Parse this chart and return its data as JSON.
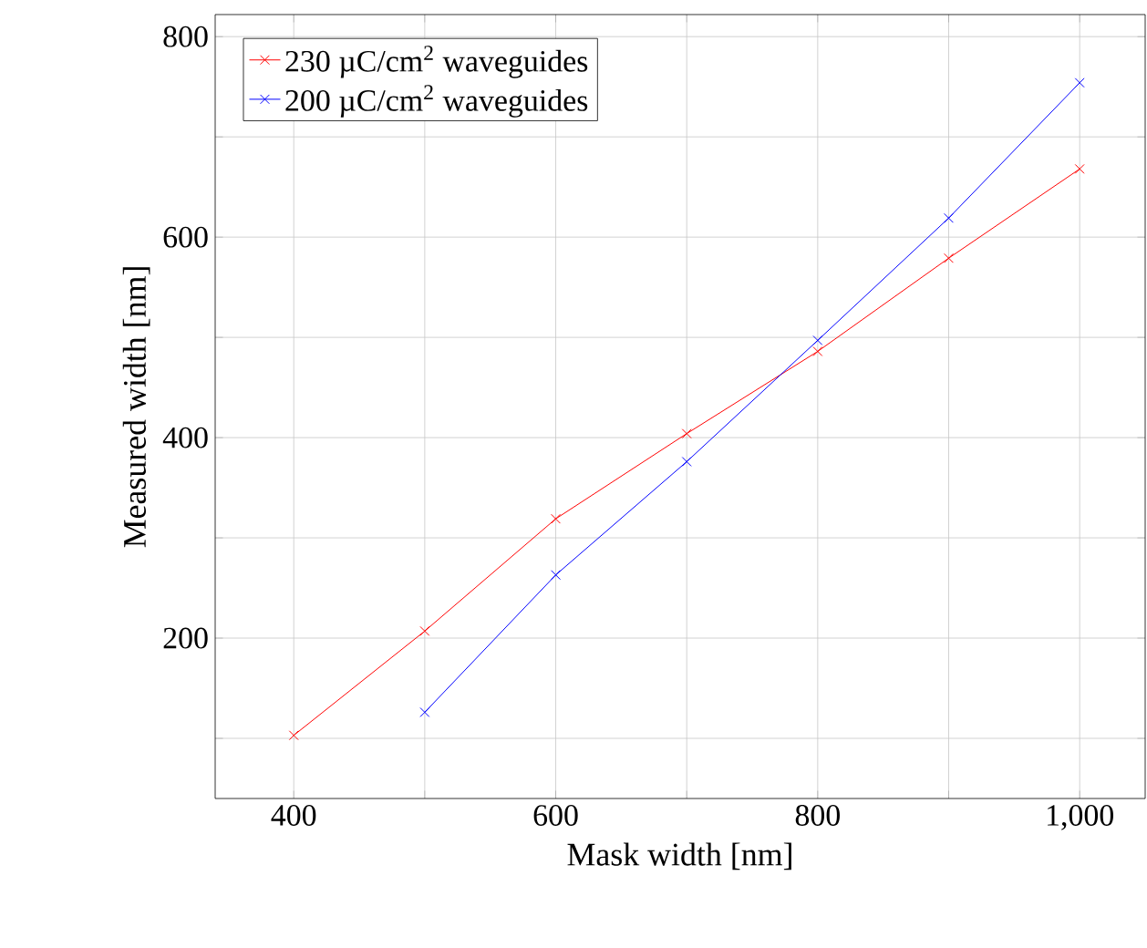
{
  "chart_data": {
    "type": "line",
    "xlabel": "Mask width [nm]",
    "ylabel": "Measured width [nm]",
    "x": [
      400,
      500,
      600,
      700,
      800,
      900,
      1000
    ],
    "series": [
      {
        "name": "230 µC/cm$^{2}$ waveguides",
        "color": "#ff0000",
        "values": [
          103,
          207,
          319,
          404,
          486,
          579,
          668
        ]
      },
      {
        "name": "200 µC/cm$^{2}$ waveguides",
        "color": "#0000ff",
        "values": [
          null,
          126,
          263,
          376,
          497,
          619,
          754
        ]
      }
    ],
    "xlim": [
      340,
      1050
    ],
    "ylim": [
      40,
      822
    ],
    "xticks": [
      400,
      {
        "value": 500,
        "label": null
      },
      600,
      {
        "value": 700,
        "label": null
      },
      800,
      {
        "value": 900,
        "label": null
      },
      {
        "value": 1000,
        "label": "1,000"
      }
    ],
    "yticks": [
      {
        "value": 100,
        "label": null
      },
      200,
      {
        "value": 300,
        "label": null
      },
      400,
      {
        "value": 500,
        "label": null
      },
      600,
      {
        "value": 700,
        "label": null
      },
      800
    ],
    "grid": true,
    "legend": "top left",
    "marker": "cross",
    "line_style": "solid"
  }
}
